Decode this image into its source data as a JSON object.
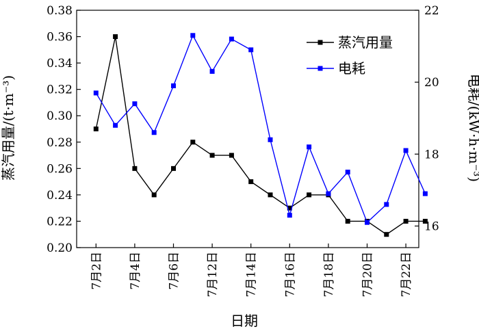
{
  "chart_data": {
    "type": "line",
    "xlabel": "日期",
    "ylabel_left": "蒸汽用量/(t·m⁻³)",
    "ylabel_right": "电耗/(kW·h·m⁻³)",
    "ylim_left": [
      0.2,
      0.38
    ],
    "ylim_right": [
      15.4,
      22
    ],
    "yticks_left": [
      "0.20",
      "0.22",
      "0.24",
      "0.26",
      "0.28",
      "0.30",
      "0.32",
      "0.34",
      "0.36",
      "0.38"
    ],
    "yticks_right": [
      "16",
      "18",
      "20",
      "22"
    ],
    "xtick_labels": [
      "7月2日",
      "7月4日",
      "7月6日",
      "7月12日",
      "7月14日",
      "7月16日",
      "7月18日",
      "7月20日",
      "7月22日"
    ],
    "x_positions": [
      1,
      2,
      3,
      4,
      5,
      6,
      7,
      8,
      9,
      10,
      11,
      12,
      13,
      14,
      15,
      16,
      17,
      18
    ],
    "legend_position": "top-right",
    "grid": false,
    "series": [
      {
        "name": "蒸汽用量",
        "axis": "left",
        "color": "#000000",
        "values": [
          0.29,
          0.36,
          0.26,
          0.24,
          0.26,
          0.28,
          0.27,
          0.27,
          0.25,
          0.24,
          0.23,
          0.24,
          0.24,
          0.22,
          0.22,
          0.21,
          0.22,
          0.22
        ]
      },
      {
        "name": "电耗",
        "axis": "right",
        "color": "#0000ff",
        "values": [
          19.7,
          18.8,
          19.4,
          18.6,
          19.9,
          21.3,
          20.3,
          21.2,
          20.9,
          18.4,
          16.3,
          18.2,
          16.9,
          17.5,
          16.1,
          16.6,
          18.1,
          16.9
        ]
      }
    ]
  }
}
